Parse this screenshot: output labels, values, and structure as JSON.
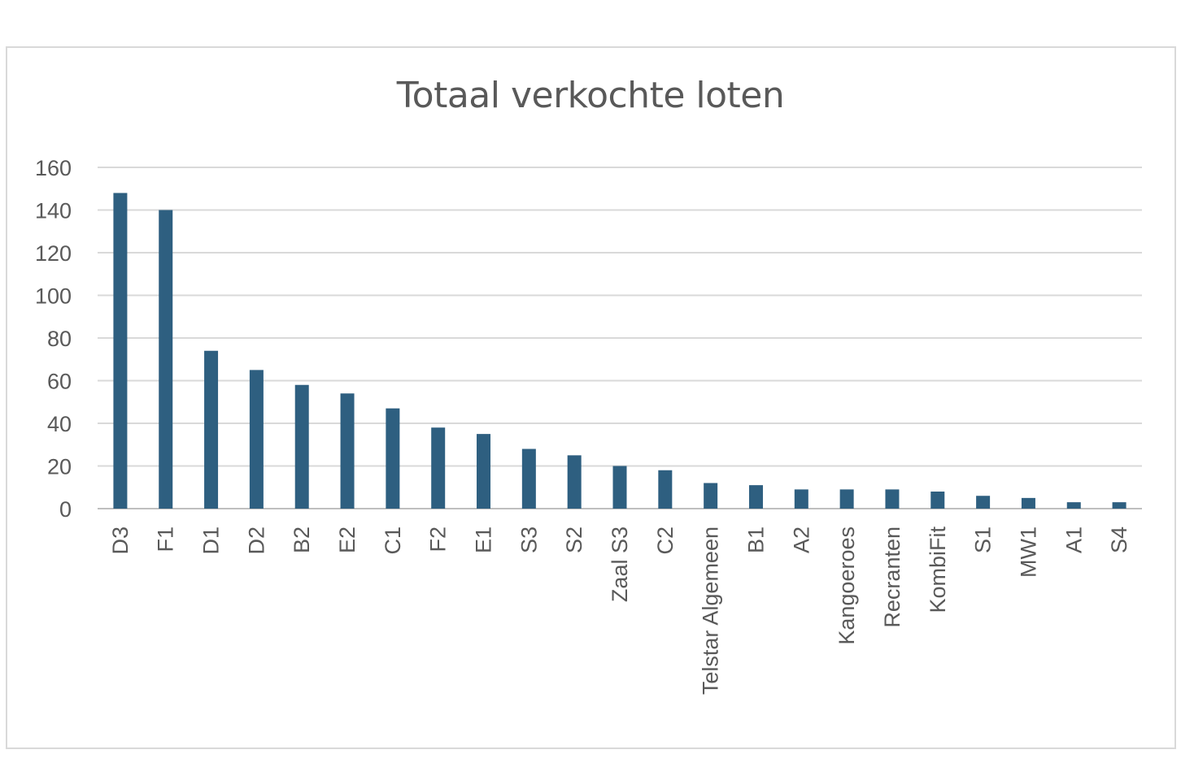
{
  "chart_data": {
    "type": "bar",
    "title": "Totaal verkochte loten",
    "xlabel": "",
    "ylabel": "",
    "ylim": [
      0,
      160
    ],
    "yticks": [
      0,
      20,
      40,
      60,
      80,
      100,
      120,
      140,
      160
    ],
    "grid": true,
    "legend": "none",
    "bar_color": "#2e5f80",
    "categories": [
      "D3",
      "F1",
      "D1",
      "D2",
      "B2",
      "E2",
      "C1",
      "F2",
      "E1",
      "S3",
      "S2",
      "Zaal S3",
      "C2",
      "Telstar Algemeen",
      "B1",
      "A2",
      "Kangoeroes",
      "Recranten",
      "KombiFit",
      "S1",
      "MW1",
      "A1",
      "S4"
    ],
    "values": [
      148,
      140,
      74,
      65,
      58,
      54,
      47,
      38,
      35,
      28,
      25,
      20,
      18,
      12,
      11,
      9,
      9,
      9,
      8,
      6,
      5,
      3,
      3
    ]
  }
}
